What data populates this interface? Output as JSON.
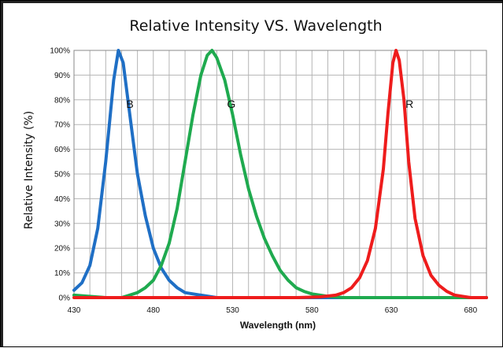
{
  "chart_data": {
    "type": "line",
    "title": "Relative Intensity  VS. Wavelength",
    "xlabel": "Wavelength (nm)",
    "ylabel": "Relative Intensity (%)",
    "xlim": [
      430,
      690
    ],
    "ylim": [
      0,
      100
    ],
    "x_ticks": [
      430,
      480,
      530,
      580,
      630,
      680
    ],
    "x_tick_labels": [
      "430",
      "480",
      "530",
      "580",
      "630",
      "680"
    ],
    "y_ticks": [
      0,
      10,
      20,
      30,
      40,
      50,
      60,
      70,
      80,
      90,
      100
    ],
    "y_tick_labels": [
      "0%",
      "10%",
      "20%",
      "30%",
      "40%",
      "50%",
      "60%",
      "70%",
      "80%",
      "90%",
      "100%"
    ],
    "grid": true,
    "legend": "none",
    "series": [
      {
        "label": "B",
        "color": "#1f6fc5",
        "points": [
          [
            430,
            3
          ],
          [
            435,
            6
          ],
          [
            440,
            13
          ],
          [
            445,
            28
          ],
          [
            450,
            55
          ],
          [
            455,
            88
          ],
          [
            458,
            100
          ],
          [
            461,
            95
          ],
          [
            465,
            75
          ],
          [
            470,
            50
          ],
          [
            475,
            33
          ],
          [
            480,
            20
          ],
          [
            485,
            12
          ],
          [
            490,
            7
          ],
          [
            495,
            4
          ],
          [
            500,
            2
          ],
          [
            510,
            1
          ],
          [
            520,
            0
          ],
          [
            540,
            0
          ],
          [
            560,
            0
          ],
          [
            580,
            0
          ],
          [
            600,
            0
          ],
          [
            620,
            0
          ],
          [
            640,
            0
          ],
          [
            660,
            0
          ],
          [
            680,
            0
          ],
          [
            690,
            0
          ]
        ]
      },
      {
        "label": "G",
        "color": "#1faa4f",
        "points": [
          [
            430,
            1
          ],
          [
            450,
            0
          ],
          [
            460,
            0
          ],
          [
            465,
            1
          ],
          [
            470,
            2
          ],
          [
            475,
            4
          ],
          [
            480,
            7
          ],
          [
            485,
            13
          ],
          [
            490,
            22
          ],
          [
            495,
            36
          ],
          [
            500,
            55
          ],
          [
            505,
            74
          ],
          [
            510,
            90
          ],
          [
            514,
            98
          ],
          [
            517,
            100
          ],
          [
            520,
            97
          ],
          [
            525,
            88
          ],
          [
            530,
            74
          ],
          [
            535,
            58
          ],
          [
            540,
            44
          ],
          [
            545,
            33
          ],
          [
            550,
            24
          ],
          [
            555,
            17
          ],
          [
            560,
            11
          ],
          [
            565,
            7
          ],
          [
            570,
            4
          ],
          [
            575,
            2.5
          ],
          [
            580,
            1.5
          ],
          [
            585,
            1
          ],
          [
            590,
            0.5
          ],
          [
            600,
            0
          ],
          [
            620,
            0
          ],
          [
            640,
            0
          ],
          [
            660,
            0
          ],
          [
            680,
            0
          ],
          [
            690,
            0
          ]
        ]
      },
      {
        "label": "R",
        "color": "#ee1c1c",
        "points": [
          [
            430,
            0
          ],
          [
            480,
            0
          ],
          [
            530,
            0
          ],
          [
            570,
            0
          ],
          [
            585,
            0.3
          ],
          [
            595,
            1
          ],
          [
            600,
            2
          ],
          [
            605,
            4
          ],
          [
            610,
            8
          ],
          [
            615,
            15
          ],
          [
            620,
            28
          ],
          [
            625,
            52
          ],
          [
            628,
            75
          ],
          [
            631,
            95
          ],
          [
            633,
            100
          ],
          [
            635,
            96
          ],
          [
            638,
            80
          ],
          [
            641,
            55
          ],
          [
            645,
            32
          ],
          [
            650,
            17
          ],
          [
            655,
            9
          ],
          [
            660,
            5
          ],
          [
            665,
            2.5
          ],
          [
            670,
            1
          ],
          [
            680,
            0
          ],
          [
            690,
            0
          ]
        ]
      }
    ]
  }
}
